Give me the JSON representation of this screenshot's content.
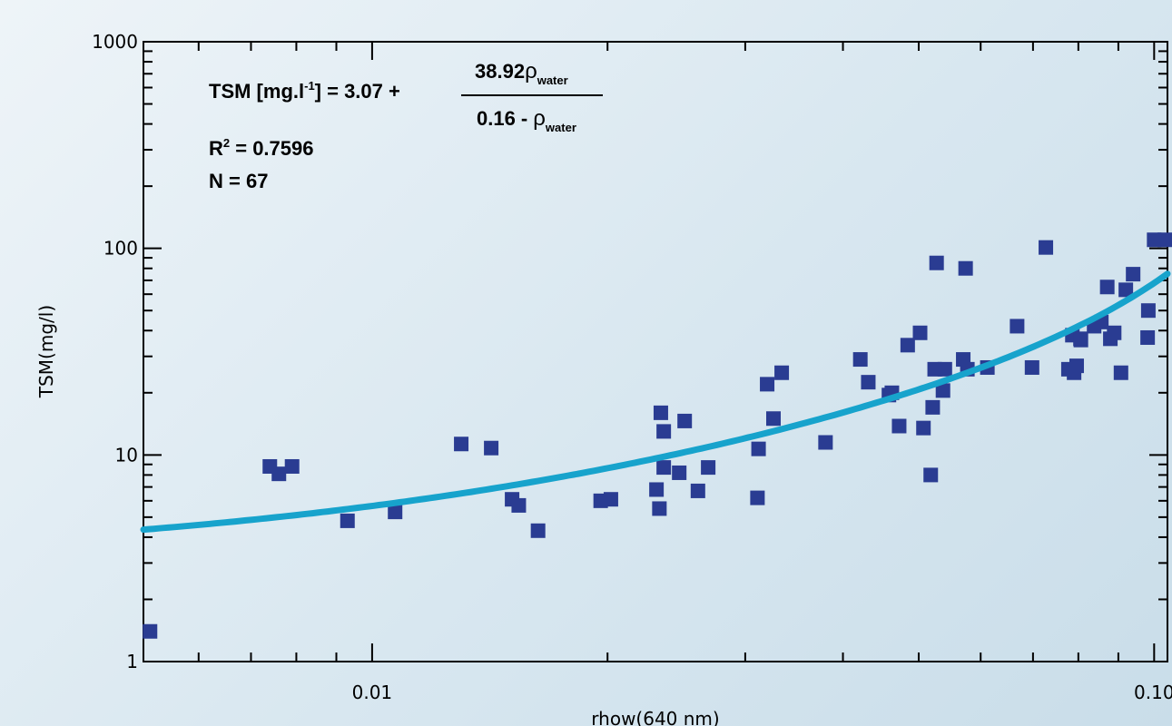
{
  "chart_data": {
    "type": "scatter",
    "xlabel": "rhow(640 nm)",
    "ylabel": "TSM(mg/l)",
    "x_scale": "log",
    "y_scale": "log",
    "xlim": [
      0.0051,
      0.104
    ],
    "ylim": [
      1,
      1000
    ],
    "x_ticks": [
      {
        "value": 0.01,
        "label": "0.01"
      },
      {
        "value": 0.1,
        "label": "0.10"
      }
    ],
    "y_ticks": [
      {
        "value": 1,
        "label": "1"
      },
      {
        "value": 10,
        "label": "10"
      },
      {
        "value": 100,
        "label": "100"
      },
      {
        "value": 1000,
        "label": "1000"
      }
    ],
    "grid": false,
    "colors": {
      "points": "#2a3c92",
      "fit_line": "#17a3cc"
    },
    "annotation": {
      "eq_lhs": "TSM [mg.l",
      "eq_lhs_sup": "-1",
      "eq_lhs_close": "] = 3.07 +",
      "num_coef": "38.92",
      "rho": "ρ",
      "rho_sub": "water",
      "den_const": "0.16 -",
      "r2_label": "R",
      "r2_sup": "2",
      "r2_value": " = 0.7596",
      "n_text": "N = 67"
    },
    "fit": {
      "a": 3.07,
      "b": 38.92,
      "c": 0.16
    },
    "series": [
      {
        "x": [
          0.0052,
          0.0074,
          0.0076,
          0.0079,
          0.0093,
          0.0107,
          0.013,
          0.0142,
          0.0151,
          0.0154,
          0.0163,
          0.0196,
          0.0202,
          0.0231,
          0.0233,
          0.0234,
          0.0236,
          0.0236,
          0.0247,
          0.0251,
          0.0261,
          0.0269,
          0.0311,
          0.0312,
          0.032,
          0.0326,
          0.0334,
          0.038,
          0.0421,
          0.0431,
          0.0458,
          0.0462,
          0.0472,
          0.0484,
          0.0502,
          0.0507,
          0.0518,
          0.0521,
          0.0524,
          0.0527,
          0.0537,
          0.054,
          0.057,
          0.0574,
          0.0577,
          0.0612,
          0.0668,
          0.0698,
          0.0727,
          0.0777,
          0.0786,
          0.079,
          0.0796,
          0.0805,
          0.0806,
          0.0838,
          0.0856,
          0.0871,
          0.0879,
          0.0889,
          0.0907,
          0.092,
          0.094,
          0.0981,
          0.0983,
          0.1,
          0.104
        ],
        "y": [
          1.4,
          8.8,
          8.1,
          8.8,
          4.8,
          5.3,
          11.3,
          10.8,
          6.1,
          5.7,
          4.3,
          6.0,
          6.1,
          6.8,
          5.5,
          16.0,
          13.0,
          8.7,
          8.2,
          14.6,
          6.7,
          8.7,
          6.2,
          10.7,
          22.0,
          15.0,
          25.0,
          11.5,
          29.0,
          22.5,
          19.5,
          20.0,
          13.8,
          34.0,
          39.0,
          13.5,
          8.0,
          17.0,
          26.0,
          85.0,
          20.5,
          26.0,
          29.0,
          80.0,
          26.0,
          26.5,
          42.0,
          26.5,
          101.0,
          26.0,
          38.0,
          25.0,
          27.0,
          36.5,
          36.0,
          42.0,
          44.0,
          65.0,
          36.5,
          39.0,
          25.0,
          63.0,
          75.0,
          37.0,
          50.0,
          110.0,
          110.0
        ]
      }
    ]
  }
}
